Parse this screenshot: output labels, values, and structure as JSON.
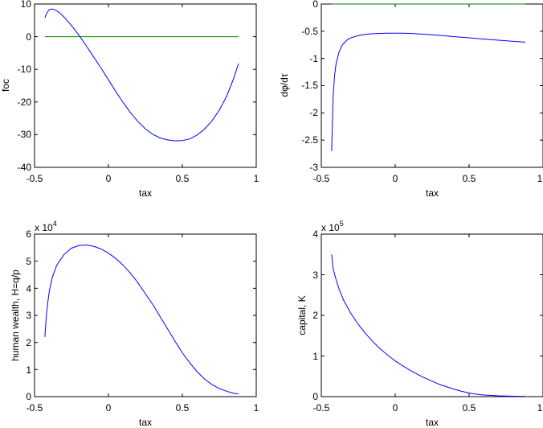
{
  "chart_data": [
    {
      "type": "line",
      "xlabel": "tax",
      "ylabel": "foc",
      "xlim": [
        -0.5,
        1
      ],
      "ylim": [
        -40,
        10
      ],
      "xticks": [
        "-0.5",
        "0",
        "0.5",
        "1"
      ],
      "yticks": [
        "-40",
        "-30",
        "-20",
        "-10",
        "0",
        "10"
      ],
      "series": [
        {
          "color": "#0000ff",
          "x": [
            -0.43,
            -0.42,
            -0.4,
            -0.38,
            -0.36,
            -0.33,
            -0.3,
            -0.25,
            -0.2,
            -0.15,
            -0.1,
            -0.05,
            0.0,
            0.05,
            0.1,
            0.15,
            0.2,
            0.25,
            0.3,
            0.35,
            0.4,
            0.45,
            0.5,
            0.55,
            0.6,
            0.65,
            0.7,
            0.75,
            0.8,
            0.85,
            0.88
          ],
          "y": [
            5.8,
            7.0,
            8.3,
            8.5,
            8.2,
            7.3,
            6.0,
            3.4,
            0.5,
            -2.8,
            -6.2,
            -9.6,
            -13.2,
            -16.8,
            -20.2,
            -23.3,
            -26.0,
            -28.2,
            -29.9,
            -31.0,
            -31.6,
            -31.9,
            -31.8,
            -31.3,
            -30.1,
            -28.3,
            -25.8,
            -22.5,
            -18.2,
            -12.5,
            -8.2
          ]
        },
        {
          "color": "#008000",
          "x": [
            -0.43,
            0.88
          ],
          "y": [
            0,
            0
          ]
        }
      ]
    },
    {
      "type": "line",
      "xlabel": "tax",
      "ylabel": "dφ/dτ",
      "xlim": [
        -0.5,
        1
      ],
      "ylim": [
        -3,
        0
      ],
      "xticks": [
        "-0.5",
        "0",
        "0.5",
        "1"
      ],
      "yticks": [
        "-3",
        "-2.5",
        "-2",
        "-1.5",
        "-1",
        "-0.5",
        "0"
      ],
      "series": [
        {
          "color": "#0000ff",
          "x": [
            -0.43,
            -0.425,
            -0.42,
            -0.41,
            -0.4,
            -0.38,
            -0.36,
            -0.33,
            -0.3,
            -0.25,
            -0.2,
            -0.15,
            -0.1,
            -0.05,
            0.0,
            0.05,
            0.1,
            0.2,
            0.3,
            0.4,
            0.5,
            0.6,
            0.7,
            0.8,
            0.88
          ],
          "y": [
            -2.7,
            -2.2,
            -1.7,
            -1.3,
            -1.1,
            -0.88,
            -0.76,
            -0.67,
            -0.62,
            -0.58,
            -0.555,
            -0.545,
            -0.54,
            -0.535,
            -0.535,
            -0.535,
            -0.54,
            -0.555,
            -0.575,
            -0.6,
            -0.62,
            -0.645,
            -0.665,
            -0.685,
            -0.7
          ]
        },
        {
          "color": "#008000",
          "x": [
            -0.43,
            0.88
          ],
          "y": [
            0,
            0
          ]
        }
      ]
    },
    {
      "type": "line",
      "xlabel": "tax",
      "ylabel": "human wealth, H=q/p",
      "yscale_label": "x 10",
      "yscale_exponent": "4",
      "xlim": [
        -0.5,
        1
      ],
      "ylim": [
        0,
        6
      ],
      "xticks": [
        "-0.5",
        "0",
        "0.5",
        "1"
      ],
      "yticks": [
        "0",
        "1",
        "2",
        "3",
        "4",
        "5",
        "6"
      ],
      "series": [
        {
          "color": "#0000ff",
          "x": [
            -0.43,
            -0.42,
            -0.41,
            -0.4,
            -0.38,
            -0.35,
            -0.3,
            -0.25,
            -0.2,
            -0.15,
            -0.1,
            -0.05,
            0.0,
            0.05,
            0.1,
            0.15,
            0.2,
            0.25,
            0.3,
            0.35,
            0.4,
            0.45,
            0.5,
            0.55,
            0.6,
            0.65,
            0.7,
            0.75,
            0.8,
            0.85,
            0.88
          ],
          "y": [
            2.2,
            3.0,
            3.5,
            3.9,
            4.4,
            4.85,
            5.25,
            5.48,
            5.58,
            5.6,
            5.55,
            5.45,
            5.3,
            5.1,
            4.85,
            4.55,
            4.2,
            3.8,
            3.4,
            2.95,
            2.5,
            2.05,
            1.62,
            1.25,
            0.92,
            0.65,
            0.45,
            0.3,
            0.2,
            0.12,
            0.1
          ]
        }
      ]
    },
    {
      "type": "line",
      "xlabel": "tax",
      "ylabel": "capital, K",
      "yscale_label": "x 10",
      "yscale_exponent": "5",
      "xlim": [
        -0.5,
        1
      ],
      "ylim": [
        0,
        4
      ],
      "xticks": [
        "-0.5",
        "0",
        "0.5",
        "1"
      ],
      "yticks": [
        "0",
        "1",
        "2",
        "3",
        "4"
      ],
      "series": [
        {
          "color": "#0000ff",
          "x": [
            -0.43,
            -0.42,
            -0.4,
            -0.38,
            -0.35,
            -0.3,
            -0.25,
            -0.2,
            -0.15,
            -0.1,
            -0.05,
            0.0,
            0.05,
            0.1,
            0.15,
            0.2,
            0.25,
            0.3,
            0.35,
            0.4,
            0.45,
            0.5,
            0.55,
            0.6,
            0.65,
            0.7,
            0.75,
            0.8,
            0.85,
            0.88
          ],
          "y": [
            3.5,
            3.15,
            2.88,
            2.65,
            2.38,
            2.05,
            1.78,
            1.55,
            1.35,
            1.17,
            1.02,
            0.88,
            0.76,
            0.65,
            0.55,
            0.46,
            0.38,
            0.3,
            0.24,
            0.18,
            0.13,
            0.09,
            0.06,
            0.04,
            0.03,
            0.02,
            0.015,
            0.01,
            0.008,
            0.008
          ]
        }
      ]
    }
  ]
}
